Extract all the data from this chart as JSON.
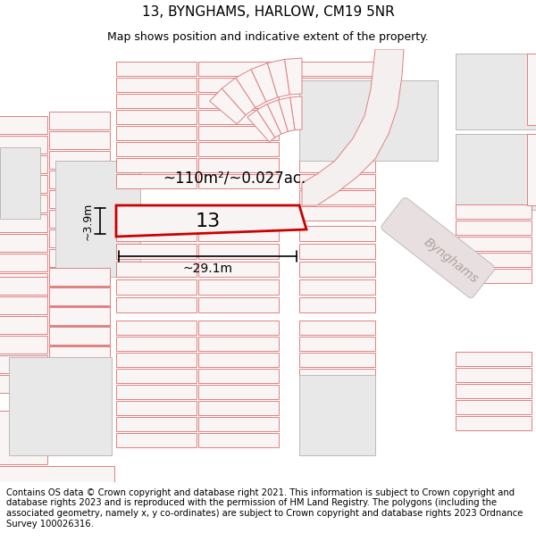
{
  "title": "13, BYNGHAMS, HARLOW, CM19 5NR",
  "subtitle": "Map shows position and indicative extent of the property.",
  "footer": "Contains OS data © Crown copyright and database right 2021. This information is subject to Crown copyright and database rights 2023 and is reproduced with the permission of HM Land Registry. The polygons (including the associated geometry, namely x, y co-ordinates) are subject to Crown copyright and database rights 2023 Ordnance Survey 100026316.",
  "area_label": "~110m²/~0.027ac.",
  "width_label": "~29.1m",
  "height_label": "~3.9m",
  "property_number": "13",
  "street_label": "Bynghams",
  "plot_fill": "#faf5f5",
  "plot_ec": "#e08080",
  "grey_fill": "#e8e8e8",
  "grey_ec": "#c0b8b8",
  "highlight_fill": "#f8f4f4",
  "highlight_stroke": "#cc0000",
  "title_fontsize": 11,
  "subtitle_fontsize": 9,
  "footer_fontsize": 7.2,
  "map_bg": "#ffffff"
}
